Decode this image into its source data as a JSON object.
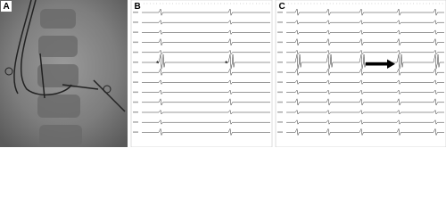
{
  "panels": [
    {
      "label": "A"
    },
    {
      "label": "B",
      "annotations": [
        "*",
        "*"
      ]
    },
    {
      "label": "C"
    }
  ]
}
